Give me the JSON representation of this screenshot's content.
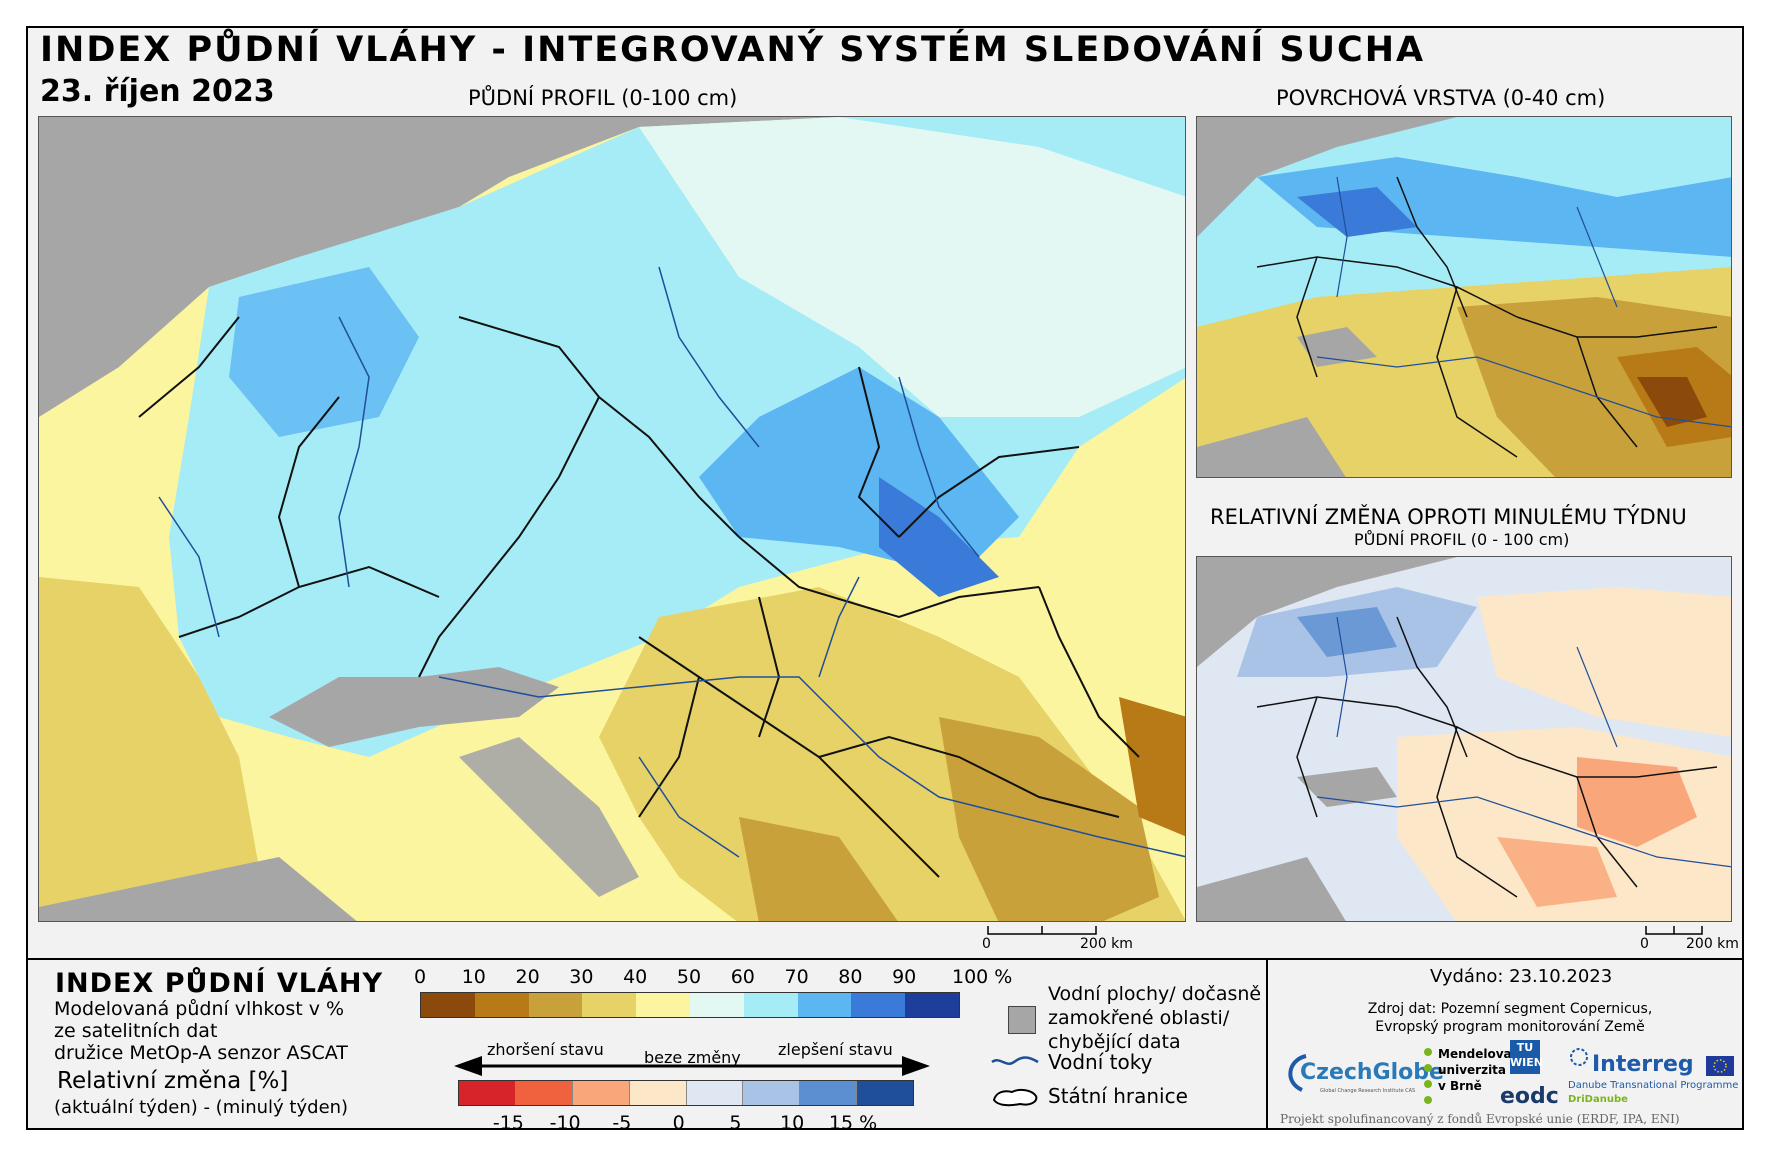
{
  "header": {
    "title": "INDEX PŮDNÍ VLÁHY - INTEGROVANÝ SYSTÉM SLEDOVÁNÍ SUCHA",
    "date": "23. říjen 2023"
  },
  "maps": {
    "main_title": "PŮDNÍ PROFIL (0-100 cm)",
    "surface_title": "POVRCHOVÁ VRSTVA (0-40 cm)",
    "change_title": "RELATIVNÍ ZMĚNA OPROTI MINULÉMU TÝDNU",
    "change_subtitle": "PŮDNÍ PROFIL (0 - 100 cm)",
    "scale_zero": "0",
    "scale_label": "200 km"
  },
  "legend": {
    "title": "INDEX PŮDNÍ VLÁHY",
    "description": "Modelovaná půdní vlhkost v %\nze satelitních dat\ndružice MetOp-A senzor ASCAT",
    "relative_title": "Relativní změna [%]",
    "relative_desc": "(aktuální týden) - (minulý týden)",
    "soil_ticks": [
      "0",
      "10",
      "20",
      "30",
      "40",
      "50",
      "60",
      "70",
      "80",
      "90",
      "100 %"
    ],
    "soil_colors": [
      "#8b4a0c",
      "#b77a16",
      "#c9a13a",
      "#e6d266",
      "#fbf5a0",
      "#e3f8f2",
      "#a6ecf6",
      "#5cb6f2",
      "#3a7ad8",
      "#1d3e9a"
    ],
    "worse_label": "zhoršení stavu",
    "nochange_label": "beze změny",
    "better_label": "zlepšení stavu",
    "change_ticks": [
      "-15",
      "-10",
      "-5",
      "0",
      "5",
      "10",
      "15 %"
    ],
    "change_colors": [
      "#d7232a",
      "#f0623e",
      "#f9a77a",
      "#fde7c9",
      "#dfe7f2",
      "#a9c3e6",
      "#5b8fd1",
      "#1f4f9a"
    ],
    "water_bodies": "Vodní plochy/ dočasně\nzamokřené oblasti/\nchybějící data",
    "rivers": "Vodní toky",
    "borders": "Státní hranice"
  },
  "info": {
    "issued": "Vydáno: 23.10.2023",
    "source": "Zdroj dat: Pozemní segment Copernicus,\nEvropský program monitorování Země",
    "logos": {
      "czechglobe": "CzechGlobe",
      "czechglobe_sub": "Global Change Research Institute CAS",
      "mendel": "Mendelova\nuniverzita\nv Brně",
      "tuwien": "TU\nWIEN",
      "eodc": "eodc",
      "interreg": "Interreg",
      "interreg_sub1": "Danube Transnational Programme",
      "interreg_sub2": "DriDanube"
    },
    "footer": "Projekt spolufinancovaný z fondů Evropské unie (ERDF, IPA, ENI)"
  },
  "colors": {
    "sea_gray": "#a6a6a6",
    "dry_brown": "#b77a16",
    "wet_blue": "#5cb6f2"
  }
}
